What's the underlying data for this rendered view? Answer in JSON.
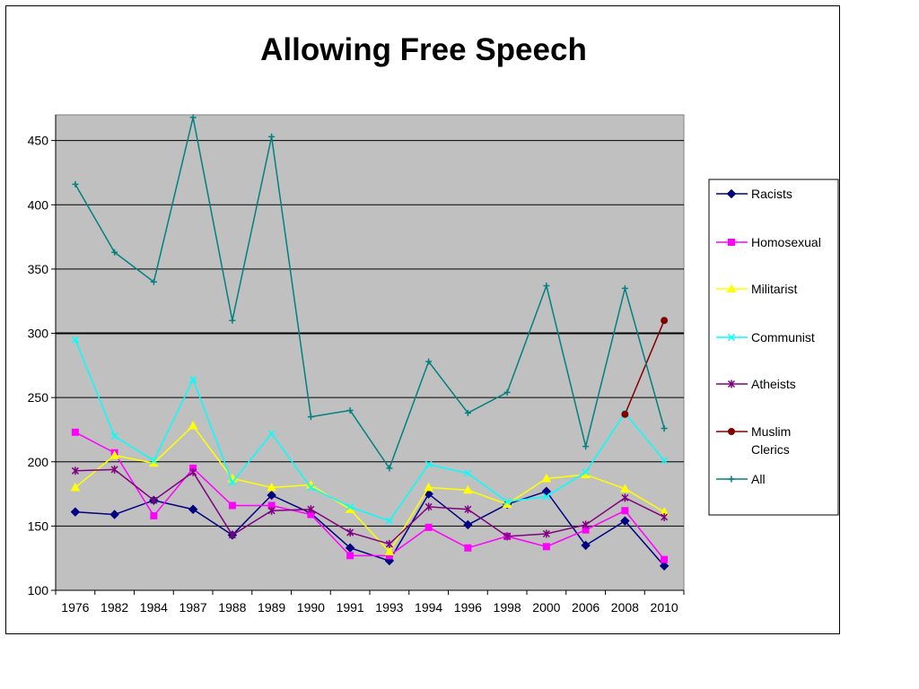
{
  "chart_data": {
    "type": "line",
    "title": "Allowing Free Speech",
    "xlabel": "",
    "ylabel": "",
    "ylim": [
      100,
      470
    ],
    "yticks": [
      100,
      150,
      200,
      250,
      300,
      350,
      400,
      450
    ],
    "grid": true,
    "legend_position": "right",
    "categories": [
      "1976",
      "1982",
      "1984",
      "1987",
      "1988",
      "1989",
      "1990",
      "1991",
      "1993",
      "1994",
      "1996",
      "1998",
      "2000",
      "2006",
      "2008",
      "2010"
    ],
    "series": [
      {
        "name": "Racists",
        "color": "#000080",
        "marker": "diamond",
        "values": [
          161,
          159,
          170,
          163,
          143,
          174,
          160,
          133,
          123,
          175,
          151,
          167,
          177,
          135,
          154,
          119
        ]
      },
      {
        "name": "Homosexual",
        "color": "#ff00ff",
        "marker": "square",
        "values": [
          223,
          207,
          158,
          195,
          166,
          166,
          159,
          127,
          127,
          149,
          133,
          142,
          134,
          147,
          162,
          124
        ]
      },
      {
        "name": "Militarist",
        "color": "#ffff00",
        "marker": "triangle",
        "values": [
          180,
          205,
          199,
          228,
          187,
          180,
          182,
          163,
          130,
          180,
          178,
          167,
          187,
          190,
          179,
          161
        ]
      },
      {
        "name": "Communist",
        "color": "#00ffff",
        "marker": "x",
        "values": [
          295,
          220,
          201,
          264,
          184,
          222,
          180,
          165,
          154,
          198,
          191,
          169,
          173,
          192,
          238,
          201
        ]
      },
      {
        "name": "Atheists",
        "color": "#800080",
        "marker": "star",
        "values": [
          193,
          194,
          170,
          192,
          143,
          162,
          163,
          145,
          136,
          165,
          163,
          142,
          144,
          151,
          172,
          157
        ]
      },
      {
        "name": "Muslim Clerics",
        "color": "#800000",
        "marker": "circle",
        "values": [
          null,
          null,
          null,
          null,
          null,
          null,
          null,
          null,
          null,
          null,
          null,
          null,
          null,
          null,
          237,
          310
        ]
      },
      {
        "name": "All",
        "color": "#008080",
        "marker": "plus",
        "values": [
          416,
          363,
          340,
          468,
          310,
          453,
          235,
          240,
          195,
          278,
          238,
          254,
          337,
          212,
          335,
          226
        ]
      }
    ]
  }
}
